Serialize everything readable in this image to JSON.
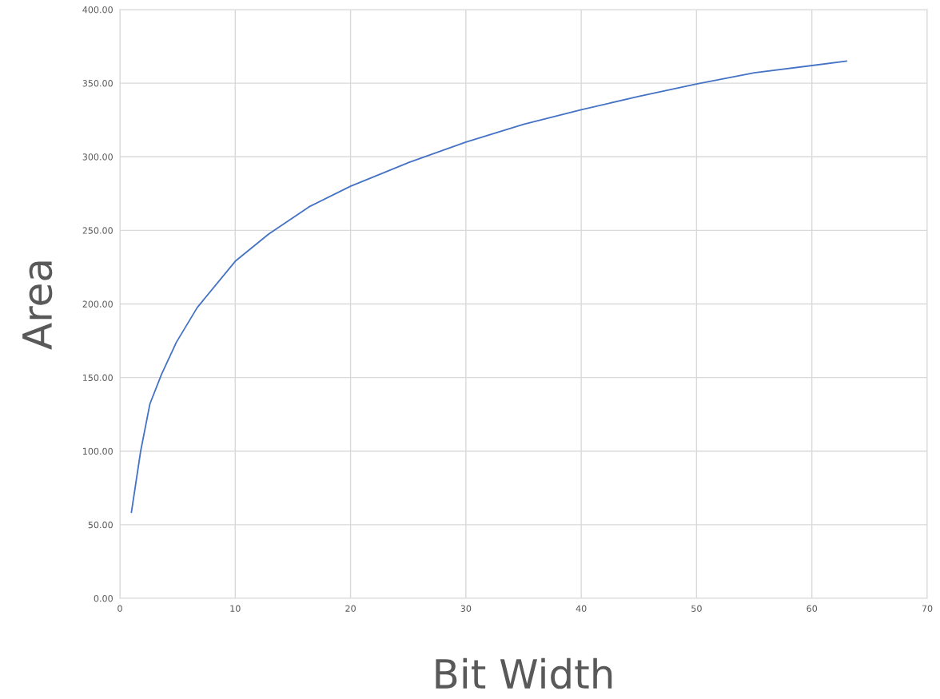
{
  "chart_data": {
    "type": "line",
    "xlabel": "Bit Width",
    "ylabel": "Area",
    "series": [
      {
        "color": "#4472c4",
        "x": [
          1,
          1.8,
          2.6,
          3.6,
          4.9,
          6.7,
          10,
          12.9,
          16.4,
          20,
          25,
          30,
          35,
          40,
          45,
          50,
          55,
          63
        ],
        "values": [
          58.5,
          100,
          132,
          152,
          174,
          197.5,
          229,
          247.5,
          266,
          280,
          296,
          310,
          322,
          332,
          341,
          349.5,
          357,
          365
        ]
      }
    ],
    "xlim": [
      0,
      70
    ],
    "xticks": [
      0,
      10,
      20,
      30,
      40,
      50,
      60,
      70
    ],
    "ylim": [
      0,
      400
    ],
    "yticks": [
      {
        "value": 0,
        "label": "0.00"
      },
      {
        "value": 50,
        "label": "50.00"
      },
      {
        "value": 100,
        "label": "100.00"
      },
      {
        "value": 150,
        "label": "150.00"
      },
      {
        "value": 200,
        "label": "200.00"
      },
      {
        "value": 250,
        "label": "250.00"
      },
      {
        "value": 300,
        "label": "300.00"
      },
      {
        "value": 350,
        "label": "350.00"
      },
      {
        "value": 400,
        "label": "400.00"
      }
    ],
    "grid": true,
    "marker": "none",
    "line_style": "solid"
  }
}
